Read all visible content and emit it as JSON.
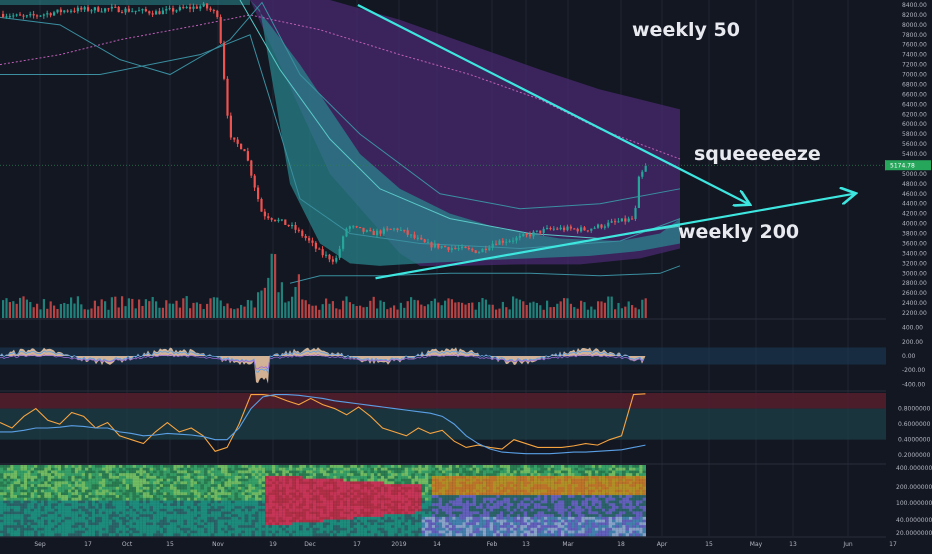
{
  "chart_data": [
    {
      "type": "candlestick",
      "panel": "price",
      "y_ticks": [
        "8400.00",
        "8200.00",
        "8000.00",
        "7800.00",
        "7600.00",
        "7400.00",
        "7200.00",
        "7000.00",
        "6800.00",
        "6600.00",
        "6400.00",
        "6200.00",
        "6000.00",
        "5800.00",
        "5600.00",
        "5400.00",
        "5200.00",
        "5000.00",
        "4800.00",
        "4600.00",
        "4400.00",
        "4200.00",
        "4000.00",
        "3800.00",
        "3600.00",
        "3400.00",
        "3200.00",
        "3000.00",
        "2800.00",
        "2600.00",
        "2400.00",
        "2200.00"
      ],
      "ylim": [
        2100,
        8500
      ],
      "last_price_label": "5174.78",
      "last_price": 5174.78,
      "close_path": [
        [
          "2018-08-28",
          8220
        ],
        [
          "2018-09-05",
          8150
        ],
        [
          "2018-09-20",
          8300
        ],
        [
          "2018-10-05",
          8320
        ],
        [
          "2018-10-20",
          8250
        ],
        [
          "2018-11-05",
          8380
        ],
        [
          "2018-11-10",
          8200
        ],
        [
          "2018-11-14",
          5700
        ],
        [
          "2018-11-19",
          5500
        ],
        [
          "2018-11-25",
          4200
        ],
        [
          "2018-12-01",
          4050
        ],
        [
          "2018-12-06",
          3900
        ],
        [
          "2018-12-10",
          3700
        ],
        [
          "2018-12-15",
          3400
        ],
        [
          "2018-12-20",
          3250
        ],
        [
          "2018-12-24",
          3950
        ],
        [
          "2019-01-01",
          3800
        ],
        [
          "2019-01-10",
          3900
        ],
        [
          "2019-01-20",
          3580
        ],
        [
          "2019-01-30",
          3500
        ],
        [
          "2019-02-07",
          3440
        ],
        [
          "2019-02-12",
          3620
        ],
        [
          "2019-02-20",
          3700
        ],
        [
          "2019-02-28",
          3850
        ],
        [
          "2019-03-05",
          3900
        ],
        [
          "2019-03-15",
          3880
        ],
        [
          "2019-03-25",
          4020
        ],
        [
          "2019-04-01",
          4100
        ],
        [
          "2019-04-02",
          4850
        ],
        [
          "2019-04-05",
          5174.78
        ]
      ],
      "annotations": [
        {
          "text": "weekly 50"
        },
        {
          "text": "squeeeeeze"
        },
        {
          "text": "weekly 200"
        }
      ],
      "trend_arrows": [
        {
          "from": [
            "2018-12-28",
            8400
          ],
          "to": [
            "2019-05-10",
            4400
          ]
        },
        {
          "from": [
            "2019-01-03",
            2900
          ],
          "to": [
            "2019-06-15",
            4600
          ]
        }
      ]
    },
    {
      "type": "bar",
      "panel": "volume"
    },
    {
      "type": "area",
      "panel": "oscillator",
      "y_ticks": [
        "400.00",
        "200.00",
        "0.00",
        "-200.00",
        "-400.00"
      ],
      "ylim": [
        -480,
        480
      ]
    },
    {
      "type": "line",
      "panel": "indicator",
      "y_ticks": [
        "0.8000000",
        "0.6000000",
        "0.4000000",
        "0.2000000"
      ],
      "ylim": [
        0.1,
        1.0
      ],
      "series": [
        {
          "color": "#f7a440",
          "values": [
            0.62,
            0.55,
            0.7,
            0.8,
            0.65,
            0.6,
            0.75,
            0.7,
            0.55,
            0.62,
            0.45,
            0.4,
            0.35,
            0.5,
            0.62,
            0.5,
            0.55,
            0.45,
            0.25,
            0.3,
            0.6,
            0.98,
            0.98,
            0.96,
            0.9,
            0.85,
            0.93,
            0.85,
            0.8,
            0.72,
            0.82,
            0.7,
            0.55,
            0.5,
            0.45,
            0.55,
            0.48,
            0.52,
            0.38,
            0.3,
            0.33,
            0.3,
            0.28,
            0.4,
            0.35,
            0.3,
            0.3,
            0.3,
            0.32,
            0.35,
            0.33,
            0.4,
            0.45,
            0.98,
            0.99
          ]
        },
        {
          "color": "#5aa0e6",
          "values": [
            0.5,
            0.5,
            0.52,
            0.55,
            0.55,
            0.56,
            0.58,
            0.57,
            0.55,
            0.55,
            0.5,
            0.48,
            0.45,
            0.46,
            0.48,
            0.47,
            0.46,
            0.44,
            0.4,
            0.4,
            0.55,
            0.8,
            0.95,
            0.98,
            0.98,
            0.97,
            0.95,
            0.93,
            0.9,
            0.88,
            0.86,
            0.84,
            0.82,
            0.8,
            0.78,
            0.76,
            0.74,
            0.7,
            0.6,
            0.45,
            0.35,
            0.28,
            0.24,
            0.23,
            0.22,
            0.22,
            0.22,
            0.23,
            0.24,
            0.24,
            0.25,
            0.26,
            0.27,
            0.3,
            0.33
          ]
        }
      ]
    },
    {
      "type": "heatmap",
      "panel": "ribbon",
      "y_ticks": [
        "400.0000000",
        "200.0000000",
        "100.0000000",
        "40.0000000",
        "20.0000000"
      ]
    }
  ],
  "x_axis": {
    "labels": [
      "Sep",
      "17",
      "Oct",
      "15",
      "Nov",
      "19",
      "Dec",
      "17",
      "2019",
      "14",
      "Feb",
      "13",
      "Mar",
      "18",
      "Apr",
      "15",
      "May",
      "13",
      "Jun",
      "17"
    ]
  },
  "colors": {
    "background": "#131722",
    "up": "#26a69a",
    "down": "#ef5350",
    "band_purple": "#4a2a70",
    "band_teal": "#2a8a90",
    "arrow": "#3ee6e0",
    "price_badge": "#26a65b"
  }
}
